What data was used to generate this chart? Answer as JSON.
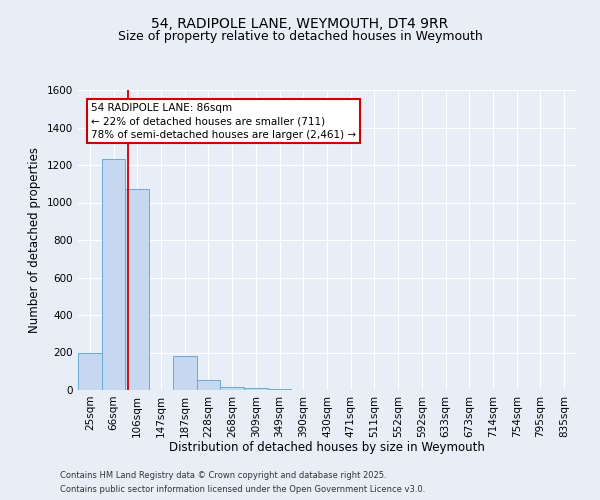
{
  "title_line1": "54, RADIPOLE LANE, WEYMOUTH, DT4 9RR",
  "title_line2": "Size of property relative to detached houses in Weymouth",
  "categories": [
    "25sqm",
    "66sqm",
    "106sqm",
    "147sqm",
    "187sqm",
    "228sqm",
    "268sqm",
    "309sqm",
    "349sqm",
    "390sqm",
    "430sqm",
    "471sqm",
    "511sqm",
    "552sqm",
    "592sqm",
    "633sqm",
    "673sqm",
    "714sqm",
    "754sqm",
    "795sqm",
    "835sqm"
  ],
  "values": [
    200,
    1230,
    1070,
    0,
    180,
    55,
    15,
    10,
    5,
    2,
    1,
    0,
    0,
    0,
    0,
    0,
    0,
    0,
    0,
    0,
    0
  ],
  "bar_color": "#c5d8f0",
  "bar_edge_color": "#6aaad4",
  "ylim": [
    0,
    1600
  ],
  "yticks": [
    0,
    200,
    400,
    600,
    800,
    1000,
    1200,
    1400,
    1600
  ],
  "ylabel": "Number of detached properties",
  "xlabel": "Distribution of detached houses by size in Weymouth",
  "red_line_x": 1.6,
  "annotation_text_line1": "54 RADIPOLE LANE: 86sqm",
  "annotation_text_line2": "← 22% of detached houses are smaller (711)",
  "annotation_text_line3": "78% of semi-detached houses are larger (2,461) →",
  "annotation_box_color": "#ffffff",
  "annotation_box_edge": "#cc0000",
  "footnote1": "Contains HM Land Registry data © Crown copyright and database right 2025.",
  "footnote2": "Contains public sector information licensed under the Open Government Licence v3.0.",
  "background_color": "#e8eef8",
  "grid_color": "#ffffff",
  "title_fontsize": 10,
  "subtitle_fontsize": 9,
  "axis_label_fontsize": 8.5,
  "tick_fontsize": 7.5,
  "annotation_fontsize": 7.5,
  "footnote_fontsize": 6
}
